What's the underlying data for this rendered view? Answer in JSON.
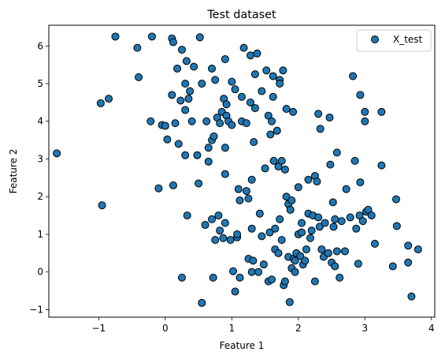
{
  "chart_data": {
    "type": "scatter",
    "title": "Test dataset",
    "xlabel": "Feature 1",
    "ylabel": "Feature 2",
    "xlim": [
      -1.75,
      4.05
    ],
    "ylim": [
      -1.2,
      6.55
    ],
    "x_ticks": [
      -1,
      0,
      1,
      2,
      3,
      4
    ],
    "y_ticks": [
      -1,
      0,
      1,
      2,
      3,
      4,
      5,
      6
    ],
    "x_tick_labels": [
      "−1",
      "0",
      "1",
      "2",
      "3",
      "4"
    ],
    "y_tick_labels": [
      "−1",
      "0",
      "1",
      "2",
      "3",
      "4",
      "5",
      "6"
    ],
    "grid": false,
    "legend_position": "top-right",
    "series": [
      {
        "name": "X_test",
        "color": "#1f77b4",
        "edgecolor": "#000000",
        "points": [
          [
            -1.63,
            3.15
          ],
          [
            -0.97,
            4.48
          ],
          [
            -0.85,
            4.6
          ],
          [
            -0.75,
            6.25
          ],
          [
            -0.95,
            1.77
          ],
          [
            -0.42,
            5.95
          ],
          [
            -0.2,
            6.25
          ],
          [
            -0.4,
            5.17
          ],
          [
            -0.22,
            4.0
          ],
          [
            -0.1,
            2.22
          ],
          [
            -0.05,
            3.9
          ],
          [
            0.0,
            3.88
          ],
          [
            0.03,
            3.52
          ],
          [
            0.1,
            4.7
          ],
          [
            0.12,
            2.3
          ],
          [
            0.1,
            6.2
          ],
          [
            0.12,
            6.1
          ],
          [
            0.15,
            3.95
          ],
          [
            0.2,
            3.4
          ],
          [
            0.18,
            5.4
          ],
          [
            0.23,
            4.55
          ],
          [
            0.25,
            5.9
          ],
          [
            0.3,
            5.0
          ],
          [
            0.3,
            4.3
          ],
          [
            0.3,
            3.1
          ],
          [
            0.32,
            5.6
          ],
          [
            0.35,
            4.6
          ],
          [
            0.33,
            1.5
          ],
          [
            0.37,
            4.8
          ],
          [
            0.4,
            4.0
          ],
          [
            0.25,
            -0.15
          ],
          [
            0.43,
            5.45
          ],
          [
            0.48,
            3.1
          ],
          [
            0.5,
            2.35
          ],
          [
            0.52,
            6.23
          ],
          [
            0.55,
            5.0
          ],
          [
            0.55,
            -0.82
          ],
          [
            0.6,
            1.25
          ],
          [
            0.62,
            4.0
          ],
          [
            0.65,
            2.93
          ],
          [
            0.65,
            3.3
          ],
          [
            0.7,
            3.5
          ],
          [
            0.7,
            5.4
          ],
          [
            0.7,
            1.4
          ],
          [
            0.72,
            -0.15
          ],
          [
            0.73,
            3.6
          ],
          [
            0.75,
            5.1
          ],
          [
            0.75,
            0.85
          ],
          [
            0.78,
            4.1
          ],
          [
            0.8,
            1.5
          ],
          [
            0.82,
            3.95
          ],
          [
            0.82,
            1.1
          ],
          [
            0.85,
            4.25
          ],
          [
            0.87,
            0.9
          ],
          [
            0.88,
            4.6
          ],
          [
            0.9,
            5.65
          ],
          [
            0.9,
            3.3
          ],
          [
            0.9,
            2.6
          ],
          [
            0.9,
            1.3
          ],
          [
            0.92,
            4.45
          ],
          [
            0.92,
            4.15
          ],
          [
            0.95,
            4.0
          ],
          [
            0.98,
            0.85
          ],
          [
            1.0,
            5.05
          ],
          [
            1.0,
            3.9
          ],
          [
            1.02,
            0.02
          ],
          [
            1.05,
            4.85
          ],
          [
            1.05,
            -0.52
          ],
          [
            1.08,
            0.92
          ],
          [
            1.08,
            1.0
          ],
          [
            1.1,
            2.2
          ],
          [
            1.12,
            -0.15
          ],
          [
            1.12,
            1.9
          ],
          [
            1.15,
            4.65
          ],
          [
            1.15,
            4.0
          ],
          [
            1.18,
            5.95
          ],
          [
            1.22,
            3.95
          ],
          [
            1.22,
            2.15
          ],
          [
            1.25,
            0.35
          ],
          [
            1.25,
            1.95
          ],
          [
            1.28,
            5.75
          ],
          [
            1.28,
            4.5
          ],
          [
            1.3,
            2.45
          ],
          [
            1.3,
            1.15
          ],
          [
            1.3,
            0.0
          ],
          [
            1.32,
            0.3
          ],
          [
            1.33,
            3.45
          ],
          [
            1.35,
            4.35
          ],
          [
            1.35,
            5.25
          ],
          [
            1.38,
            5.8
          ],
          [
            1.4,
            0.0
          ],
          [
            1.42,
            1.55
          ],
          [
            1.45,
            4.8
          ],
          [
            1.45,
            0.95
          ],
          [
            1.48,
            0.2
          ],
          [
            1.5,
            2.75
          ],
          [
            1.52,
            5.35
          ],
          [
            1.55,
            -0.25
          ],
          [
            1.55,
            4.15
          ],
          [
            1.57,
            1.05
          ],
          [
            1.58,
            3.65
          ],
          [
            1.6,
            -0.2
          ],
          [
            1.6,
            4.0
          ],
          [
            1.62,
            4.65
          ],
          [
            1.62,
            5.2
          ],
          [
            1.63,
            2.95
          ],
          [
            1.65,
            1.15
          ],
          [
            1.65,
            0.6
          ],
          [
            1.68,
            3.75
          ],
          [
            1.7,
            2.8
          ],
          [
            1.7,
            0.5
          ],
          [
            1.72,
            1.4
          ],
          [
            1.72,
            5.1
          ],
          [
            1.72,
            5.0
          ],
          [
            1.75,
            2.95
          ],
          [
            1.75,
            0.85
          ],
          [
            1.77,
            5.35
          ],
          [
            1.78,
            -0.35
          ],
          [
            1.8,
            2.72
          ],
          [
            1.8,
            -0.25
          ],
          [
            1.82,
            2.0
          ],
          [
            1.82,
            4.33
          ],
          [
            1.85,
            0.4
          ],
          [
            1.85,
            1.8
          ],
          [
            1.87,
            -0.8
          ],
          [
            1.88,
            1.65
          ],
          [
            1.9,
            1.9
          ],
          [
            1.9,
            0.1
          ],
          [
            1.92,
            4.25
          ],
          [
            1.93,
            0.35
          ],
          [
            1.95,
            0.3
          ],
          [
            1.95,
            0.0
          ],
          [
            1.97,
            0.5
          ],
          [
            2.0,
            2.25
          ],
          [
            2.0,
            1.0
          ],
          [
            2.03,
            0.42
          ],
          [
            2.05,
            1.3
          ],
          [
            2.05,
            1.05
          ],
          [
            2.07,
            0.2
          ],
          [
            2.1,
            0.3
          ],
          [
            2.12,
            0.6
          ],
          [
            2.15,
            2.45
          ],
          [
            2.15,
            1.55
          ],
          [
            2.18,
            0.9
          ],
          [
            2.2,
            1.1
          ],
          [
            2.22,
            1.5
          ],
          [
            2.25,
            2.55
          ],
          [
            2.25,
            -0.25
          ],
          [
            2.28,
            2.4
          ],
          [
            2.3,
            4.2
          ],
          [
            2.3,
            1.45
          ],
          [
            2.32,
            1.2
          ],
          [
            2.33,
            3.8
          ],
          [
            2.35,
            0.6
          ],
          [
            2.38,
            0.4
          ],
          [
            2.4,
            1.3
          ],
          [
            2.45,
            0.5
          ],
          [
            2.47,
            4.1
          ],
          [
            2.48,
            2.85
          ],
          [
            2.5,
            0.25
          ],
          [
            2.52,
            1.85
          ],
          [
            2.53,
            1.2
          ],
          [
            2.55,
            1.4
          ],
          [
            2.55,
            0.15
          ],
          [
            2.58,
            3.17
          ],
          [
            2.58,
            0.55
          ],
          [
            2.62,
            -0.15
          ],
          [
            2.65,
            1.35
          ],
          [
            2.7,
            0.55
          ],
          [
            2.72,
            2.2
          ],
          [
            2.78,
            1.45
          ],
          [
            2.82,
            5.2
          ],
          [
            2.85,
            2.95
          ],
          [
            2.87,
            1.15
          ],
          [
            2.9,
            0.22
          ],
          [
            2.92,
            1.5
          ],
          [
            2.93,
            4.7
          ],
          [
            2.93,
            2.38
          ],
          [
            2.97,
            1.35
          ],
          [
            3.0,
            4.25
          ],
          [
            3.0,
            4.0
          ],
          [
            3.02,
            1.6
          ],
          [
            3.05,
            1.65
          ],
          [
            3.1,
            1.5
          ],
          [
            3.15,
            0.75
          ],
          [
            3.25,
            4.25
          ],
          [
            3.25,
            2.83
          ],
          [
            3.42,
            0.15
          ],
          [
            3.47,
            1.93
          ],
          [
            3.48,
            1.22
          ],
          [
            3.65,
            0.25
          ],
          [
            3.65,
            0.7
          ],
          [
            3.7,
            -0.65
          ],
          [
            3.8,
            0.6
          ]
        ]
      }
    ]
  }
}
